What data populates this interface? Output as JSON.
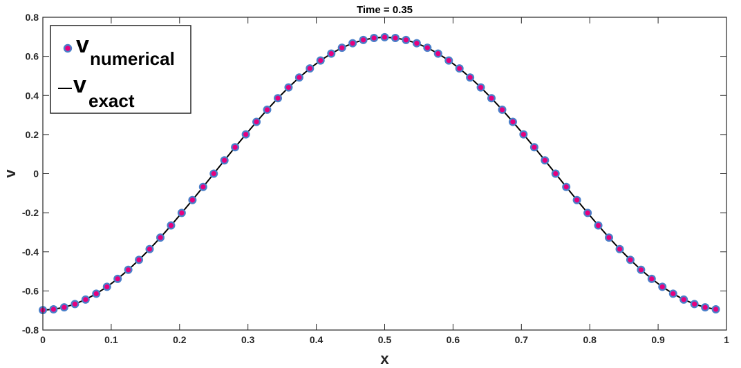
{
  "chart_data": {
    "type": "line",
    "title": "Time = 0.35",
    "xlabel": "x",
    "ylabel": "v",
    "xlim": [
      0,
      1
    ],
    "ylim": [
      -0.8,
      0.8
    ],
    "x_ticks": [
      "0",
      "0.1",
      "0.2",
      "0.3",
      "0.4",
      "0.5",
      "0.6",
      "0.7",
      "0.8",
      "0.9",
      "1"
    ],
    "y_ticks": [
      "-0.8",
      "-0.6",
      "-0.4",
      "-0.2",
      "0",
      "0.2",
      "0.4",
      "0.6",
      "0.8"
    ],
    "grid": false,
    "legend_position": "top-left",
    "series": [
      {
        "name_main": "v",
        "name_sub": "numerical",
        "style": "markers",
        "marker_face": "#e6007e",
        "marker_edge": "#4a7fc9",
        "x": [
          0.0,
          0.0156,
          0.0312,
          0.0469,
          0.0625,
          0.0781,
          0.0938,
          0.1094,
          0.125,
          0.1406,
          0.1562,
          0.1719,
          0.1875,
          0.2031,
          0.2188,
          0.2344,
          0.25,
          0.2656,
          0.2812,
          0.2969,
          0.3125,
          0.3281,
          0.3438,
          0.3594,
          0.375,
          0.3906,
          0.4062,
          0.4219,
          0.4375,
          0.4531,
          0.4688,
          0.4844,
          0.5,
          0.5156,
          0.5312,
          0.5469,
          0.5625,
          0.5781,
          0.5938,
          0.6094,
          0.625,
          0.6406,
          0.6562,
          0.6719,
          0.6875,
          0.7031,
          0.7188,
          0.7344,
          0.75,
          0.7656,
          0.7812,
          0.7969,
          0.8125,
          0.8281,
          0.8438,
          0.8594,
          0.875,
          0.8906,
          0.9062,
          0.9219,
          0.9375,
          0.9531,
          0.9688,
          0.9844
        ],
        "y": [
          -0.698,
          -0.694,
          -0.684,
          -0.667,
          -0.644,
          -0.614,
          -0.579,
          -0.538,
          -0.492,
          -0.441,
          -0.386,
          -0.327,
          -0.265,
          -0.201,
          -0.135,
          -0.068,
          0.0,
          0.068,
          0.135,
          0.201,
          0.265,
          0.327,
          0.386,
          0.441,
          0.492,
          0.538,
          0.579,
          0.614,
          0.644,
          0.667,
          0.684,
          0.694,
          0.698,
          0.694,
          0.684,
          0.667,
          0.644,
          0.614,
          0.579,
          0.538,
          0.492,
          0.441,
          0.386,
          0.327,
          0.265,
          0.201,
          0.135,
          0.068,
          0.0,
          -0.068,
          -0.135,
          -0.201,
          -0.265,
          -0.327,
          -0.386,
          -0.441,
          -0.492,
          -0.538,
          -0.579,
          -0.614,
          -0.644,
          -0.667,
          -0.684,
          -0.694
        ]
      },
      {
        "name_main": "v",
        "name_sub": "exact",
        "style": "line",
        "color": "#000000",
        "x": [
          0.0,
          0.0156,
          0.0312,
          0.0469,
          0.0625,
          0.0781,
          0.0938,
          0.1094,
          0.125,
          0.1406,
          0.1562,
          0.1719,
          0.1875,
          0.2031,
          0.2188,
          0.2344,
          0.25,
          0.2656,
          0.2812,
          0.2969,
          0.3125,
          0.3281,
          0.3438,
          0.3594,
          0.375,
          0.3906,
          0.4062,
          0.4219,
          0.4375,
          0.4531,
          0.4688,
          0.4844,
          0.5,
          0.5156,
          0.5312,
          0.5469,
          0.5625,
          0.5781,
          0.5938,
          0.6094,
          0.625,
          0.6406,
          0.6562,
          0.6719,
          0.6875,
          0.7031,
          0.7188,
          0.7344,
          0.75,
          0.7656,
          0.7812,
          0.7969,
          0.8125,
          0.8281,
          0.8438,
          0.8594,
          0.875,
          0.8906,
          0.9062,
          0.9219,
          0.9375,
          0.9531,
          0.9688,
          0.9844
        ],
        "y": [
          -0.698,
          -0.694,
          -0.684,
          -0.667,
          -0.644,
          -0.614,
          -0.579,
          -0.538,
          -0.492,
          -0.441,
          -0.386,
          -0.327,
          -0.265,
          -0.201,
          -0.135,
          -0.068,
          0.0,
          0.068,
          0.135,
          0.201,
          0.265,
          0.327,
          0.386,
          0.441,
          0.492,
          0.538,
          0.579,
          0.614,
          0.644,
          0.667,
          0.684,
          0.694,
          0.698,
          0.694,
          0.684,
          0.667,
          0.644,
          0.614,
          0.579,
          0.538,
          0.492,
          0.441,
          0.386,
          0.327,
          0.265,
          0.201,
          0.135,
          0.068,
          0.0,
          -0.068,
          -0.135,
          -0.201,
          -0.265,
          -0.327,
          -0.386,
          -0.441,
          -0.492,
          -0.538,
          -0.579,
          -0.614,
          -0.644,
          -0.667,
          -0.684,
          -0.694
        ]
      }
    ]
  }
}
